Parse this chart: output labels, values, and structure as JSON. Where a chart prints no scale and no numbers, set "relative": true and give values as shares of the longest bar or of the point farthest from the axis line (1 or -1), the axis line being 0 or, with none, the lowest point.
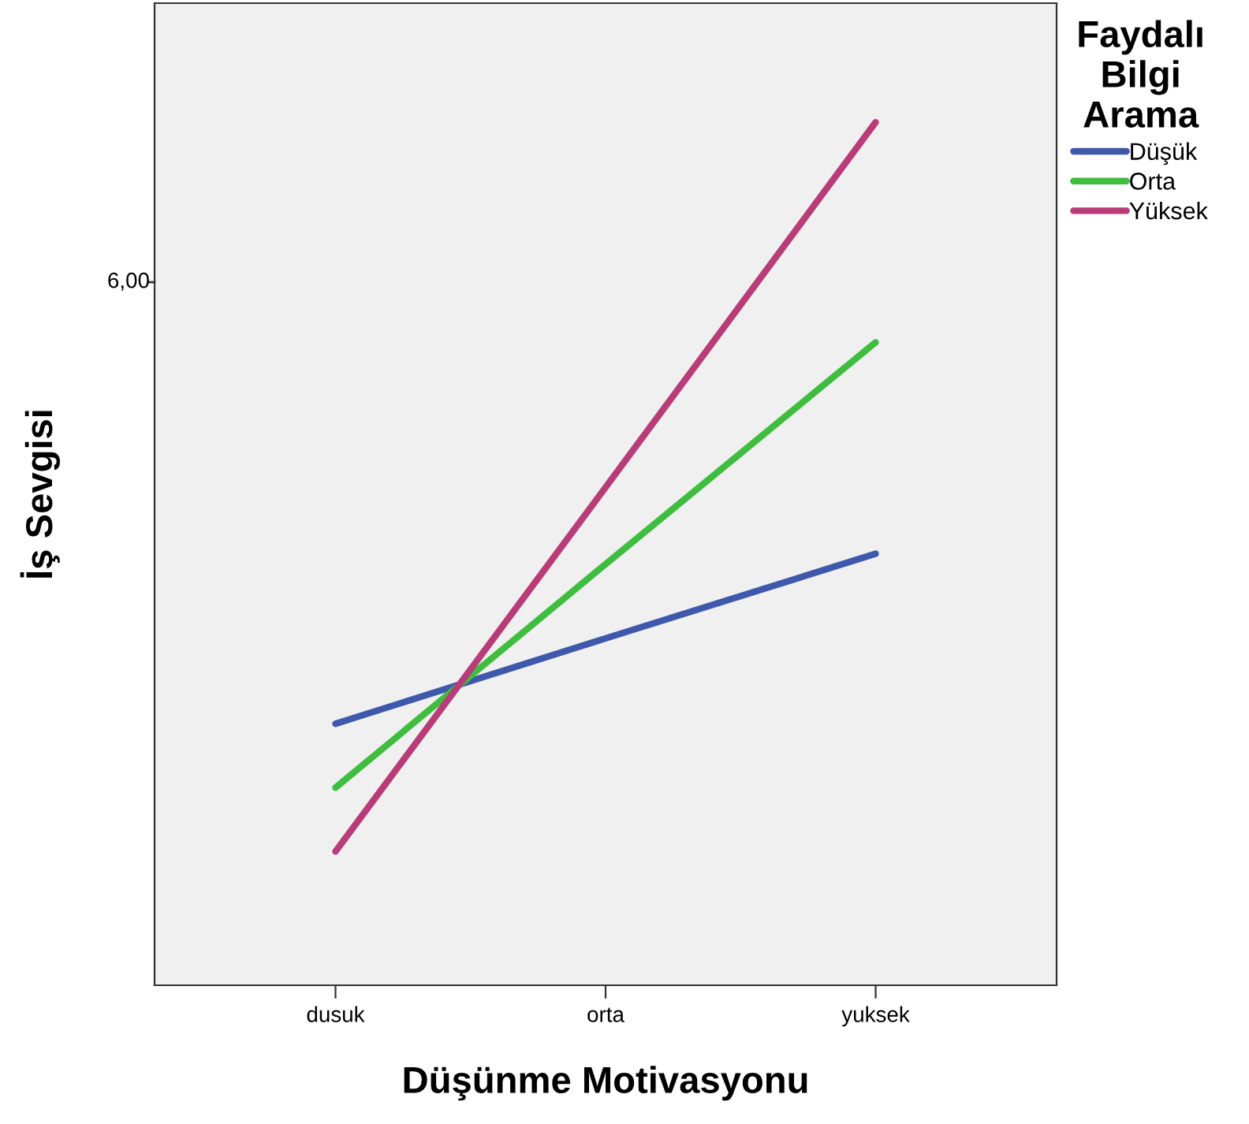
{
  "chart_data": {
    "type": "line",
    "xlabel": "Düşünme Motivasyonu",
    "ylabel": "İş Sevgisi",
    "legend_title": "Faydalı\nBilgi\nArama",
    "legend": "top right",
    "relative": true,
    "grid": false,
    "marker": "none",
    "line_style": "solid",
    "categories": [
      "dusuk",
      "orta",
      "yuksek"
    ],
    "annotations": [
      "6,00"
    ],
    "series": [
      {
        "name": "Düşük",
        "color": "#3e58ac",
        "values": [
          0.303,
          0.402,
          0.5
        ]
      },
      {
        "name": "Orta",
        "color": "#3ebd3e",
        "values": [
          0.229,
          0.488,
          0.745
        ]
      },
      {
        "name": "Yüksek",
        "color": "#b83c78",
        "values": [
          0.155,
          0.577,
          1.0
        ]
      }
    ]
  }
}
